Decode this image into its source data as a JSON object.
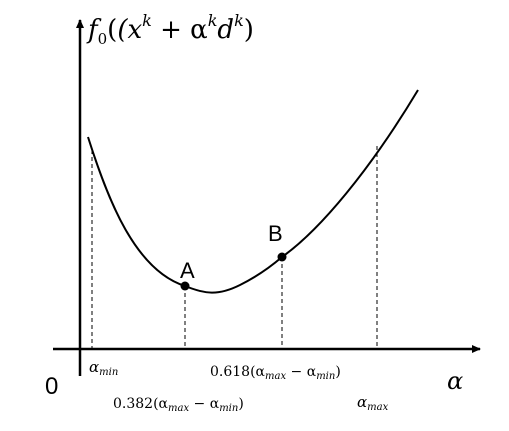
{
  "figure": {
    "y_axis_label": {
      "base": "f",
      "sub": "0",
      "open": "(x",
      "sup1": "k",
      "mid": " + α",
      "sup2": "k",
      "d": "d",
      "sup3": "k",
      "close": ")"
    },
    "x_axis_label": "α",
    "origin_label": "0",
    "points": [
      {
        "label": "A"
      },
      {
        "label": "B"
      }
    ],
    "tick_labels": {
      "alpha_min": {
        "base": "α",
        "sub": "min"
      },
      "alpha_max": {
        "base": "α",
        "sub": "max"
      },
      "b_pos": {
        "pre": "0.618(α",
        "sub1": "max",
        "mid": " − α",
        "sub2": "min",
        "post": ")"
      },
      "a_pos": {
        "pre": "0.382(α",
        "sub1": "max",
        "mid": " − α",
        "sub2": "min",
        "post": ")"
      }
    }
  },
  "colors": {
    "ink": "#000000",
    "background": "#ffffff"
  }
}
